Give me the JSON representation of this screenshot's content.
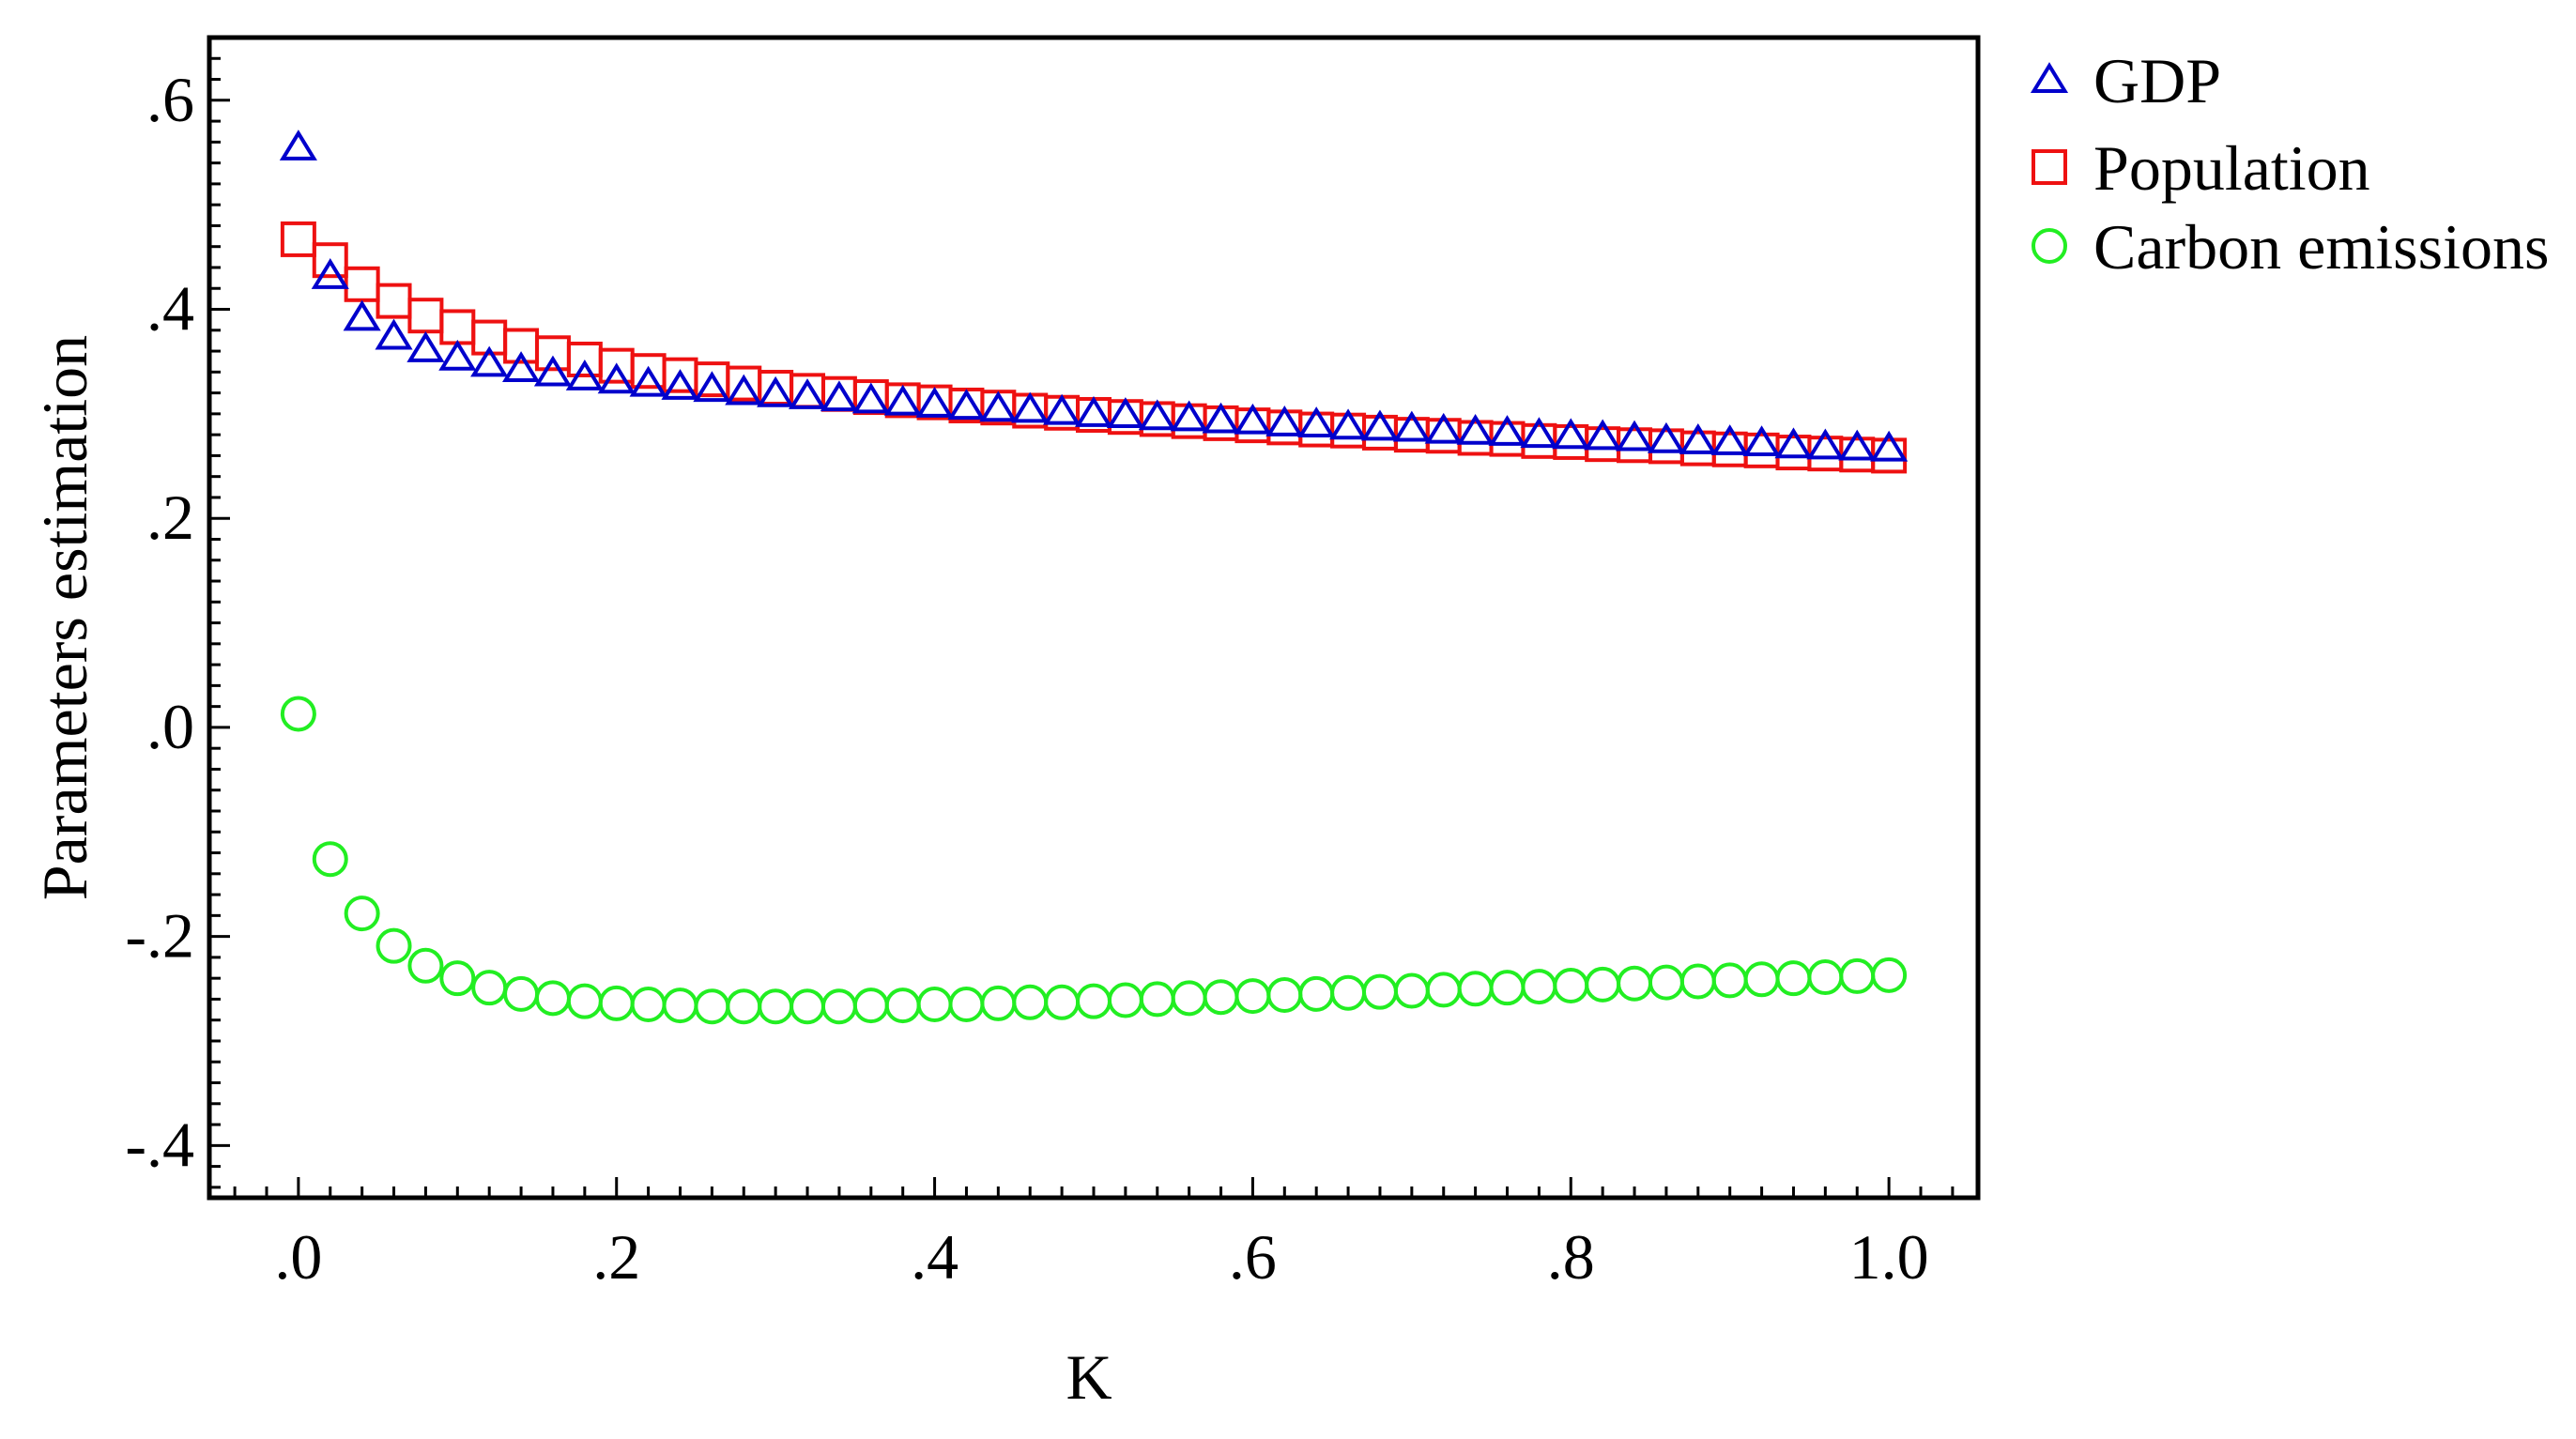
{
  "chart_data": {
    "type": "scatter",
    "title": "",
    "xlabel": "K",
    "ylabel": "Parameters estimation",
    "xlim": [
      -0.056,
      1.056
    ],
    "ylim": [
      -0.45,
      0.66
    ],
    "xticks": [
      0.0,
      0.2,
      0.4,
      0.6,
      0.8,
      1.0
    ],
    "xtick_labels": [
      ".0",
      ".2",
      ".4",
      ".6",
      ".8",
      "1.0"
    ],
    "yticks": [
      -0.4,
      -0.2,
      0.0,
      0.2,
      0.4,
      0.6
    ],
    "ytick_labels": [
      "-.4",
      "-.2",
      ".0",
      ".2",
      ".4",
      ".6"
    ],
    "grid": false,
    "legend_position": "outside-top-right",
    "x": [
      0.0,
      0.02,
      0.04,
      0.06,
      0.08,
      0.1,
      0.12,
      0.14,
      0.16,
      0.18,
      0.2,
      0.22,
      0.24,
      0.26,
      0.28,
      0.3,
      0.32,
      0.34,
      0.36,
      0.38,
      0.4,
      0.42,
      0.44,
      0.46,
      0.48,
      0.5,
      0.52,
      0.54,
      0.56,
      0.58,
      0.6,
      0.62,
      0.64,
      0.66,
      0.68,
      0.7,
      0.72,
      0.74,
      0.76,
      0.78,
      0.8,
      0.82,
      0.84,
      0.86,
      0.88,
      0.9,
      0.92,
      0.94,
      0.96,
      0.98,
      1.0
    ],
    "series": [
      {
        "name": "GDP",
        "marker": "triangle",
        "color": "#0000cc",
        "values": [
          0.555,
          0.432,
          0.392,
          0.374,
          0.362,
          0.354,
          0.348,
          0.343,
          0.339,
          0.335,
          0.332,
          0.329,
          0.326,
          0.324,
          0.321,
          0.319,
          0.317,
          0.315,
          0.313,
          0.311,
          0.309,
          0.307,
          0.305,
          0.304,
          0.302,
          0.3,
          0.299,
          0.297,
          0.296,
          0.294,
          0.293,
          0.291,
          0.29,
          0.288,
          0.287,
          0.286,
          0.284,
          0.283,
          0.282,
          0.28,
          0.279,
          0.278,
          0.277,
          0.275,
          0.274,
          0.273,
          0.272,
          0.27,
          0.269,
          0.268,
          0.267
        ]
      },
      {
        "name": "Population",
        "marker": "square",
        "color": "#ee1111",
        "values": [
          0.467,
          0.447,
          0.424,
          0.408,
          0.394,
          0.383,
          0.373,
          0.365,
          0.358,
          0.352,
          0.346,
          0.341,
          0.337,
          0.333,
          0.329,
          0.325,
          0.322,
          0.319,
          0.316,
          0.313,
          0.311,
          0.308,
          0.306,
          0.303,
          0.301,
          0.299,
          0.297,
          0.295,
          0.293,
          0.291,
          0.289,
          0.287,
          0.285,
          0.284,
          0.282,
          0.28,
          0.279,
          0.277,
          0.276,
          0.274,
          0.273,
          0.271,
          0.27,
          0.269,
          0.267,
          0.266,
          0.265,
          0.263,
          0.262,
          0.261,
          0.26
        ]
      },
      {
        "name": "Carbon emissions",
        "marker": "circle",
        "color": "#22ee22",
        "values": [
          0.013,
          -0.126,
          -0.178,
          -0.209,
          -0.228,
          -0.24,
          -0.249,
          -0.255,
          -0.259,
          -0.262,
          -0.264,
          -0.265,
          -0.266,
          -0.267,
          -0.267,
          -0.267,
          -0.267,
          -0.267,
          -0.266,
          -0.266,
          -0.265,
          -0.265,
          -0.264,
          -0.263,
          -0.263,
          -0.262,
          -0.261,
          -0.26,
          -0.259,
          -0.258,
          -0.257,
          -0.256,
          -0.255,
          -0.254,
          -0.253,
          -0.252,
          -0.251,
          -0.25,
          -0.249,
          -0.248,
          -0.247,
          -0.246,
          -0.245,
          -0.244,
          -0.243,
          -0.242,
          -0.241,
          -0.24,
          -0.239,
          -0.238,
          -0.237
        ]
      }
    ]
  }
}
